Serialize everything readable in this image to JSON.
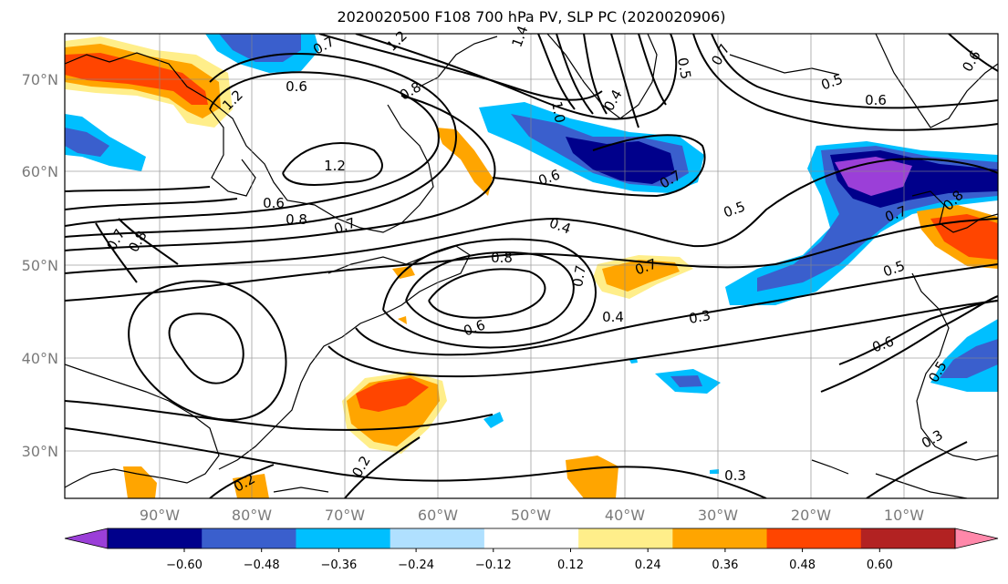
{
  "title": "2020020500 F108 700 hPa PV, SLP PC (2020020906)",
  "axes": {
    "lon_ticks": [
      "90°W",
      "80°W",
      "70°W",
      "60°W",
      "50°W",
      "40°W",
      "30°W",
      "20°W",
      "10°W"
    ],
    "lat_ticks": [
      "70°N",
      "60°N",
      "50°N",
      "40°N",
      "30°N"
    ]
  },
  "colorbar": {
    "labels": [
      "−0.60",
      "−0.48",
      "−0.36",
      "−0.24",
      "−0.12",
      "0.12",
      "0.24",
      "0.36",
      "0.48",
      "0.60"
    ],
    "colors": [
      "#9b3fd8",
      "#00008b",
      "#3a5fcd",
      "#00bfff",
      "#b0e0ff",
      "#ffffff",
      "#ffee8a",
      "#ffa500",
      "#ff4500",
      "#b22222",
      "#ff88aa"
    ]
  },
  "contour_labels": [
    {
      "text": "0.7"
    },
    {
      "text": "1.2"
    },
    {
      "text": "1.4"
    },
    {
      "text": "1.2"
    },
    {
      "text": "0.5"
    },
    {
      "text": "0.7"
    },
    {
      "text": "0.6"
    },
    {
      "text": "0.8"
    },
    {
      "text": "0.6"
    },
    {
      "text": "1.0"
    },
    {
      "text": "0.4"
    },
    {
      "text": "1.2"
    },
    {
      "text": "0.6"
    },
    {
      "text": "0.7"
    },
    {
      "text": "0.5"
    },
    {
      "text": "0.7"
    },
    {
      "text": "0.8"
    },
    {
      "text": "0.8"
    },
    {
      "text": "0.7"
    },
    {
      "text": "0.4"
    },
    {
      "text": "0.5"
    },
    {
      "text": "0.6"
    },
    {
      "text": "0.8"
    },
    {
      "text": "0.7"
    },
    {
      "text": "0.7"
    },
    {
      "text": "0.5"
    },
    {
      "text": "0.6"
    },
    {
      "text": "0.4"
    },
    {
      "text": "0.3"
    },
    {
      "text": "0.6"
    },
    {
      "text": "0.5"
    },
    {
      "text": "0.2"
    },
    {
      "text": "0.3"
    },
    {
      "text": "0.3"
    },
    {
      "text": "0.2"
    },
    {
      "text": "0.6"
    },
    {
      "text": "0.7"
    },
    {
      "text": "0.8"
    }
  ]
}
